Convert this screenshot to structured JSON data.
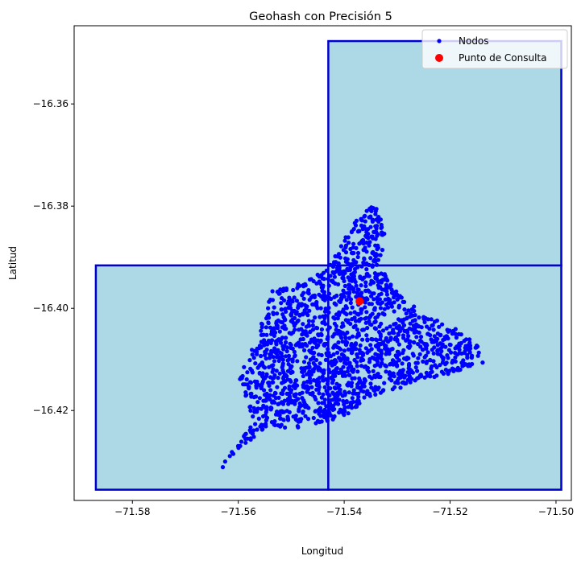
{
  "chart_data": {
    "type": "scatter",
    "title": "Geohash con Precisión 5",
    "xlabel": "Longitud",
    "ylabel": "Latitud",
    "xlim": [
      -71.591,
      -71.4971
    ],
    "ylim": [
      -16.4376,
      -16.3447
    ],
    "xticks": [
      -71.58,
      -71.56,
      -71.54,
      -71.52,
      -71.5
    ],
    "xtick_labels": [
      "−71.58",
      "−71.56",
      "−71.54",
      "−71.52",
      "−71.50"
    ],
    "yticks": [
      -16.36,
      -16.38,
      -16.4,
      -16.42
    ],
    "ytick_labels": [
      "−16.36",
      "−16.38",
      "−16.40",
      "−16.42"
    ],
    "grid": false,
    "legend": {
      "position": "top-right",
      "entries": [
        {
          "label": "Nodos",
          "color": "#0000ff",
          "marker": "small-circle"
        },
        {
          "label": "Punto de Consulta",
          "color": "#ff0000",
          "marker": "large-circle"
        }
      ]
    },
    "geohash_cells": [
      {
        "lon_min": -71.5869,
        "lon_max": -71.543,
        "lat_min": -16.4355,
        "lat_max": -16.3916
      },
      {
        "lon_min": -71.543,
        "lon_max": -71.499,
        "lat_min": -16.4355,
        "lat_max": -16.3916
      },
      {
        "lon_min": -71.543,
        "lon_max": -71.499,
        "lat_min": -16.3916,
        "lat_max": -16.3477
      }
    ],
    "cell_fill": "#add8e6",
    "cell_edge": "#0000cd",
    "series": [
      {
        "name": "Nodos",
        "color": "#0000ff",
        "region_outline": [
          [
            -71.5638,
            -16.432
          ],
          [
            -71.5545,
            -16.423
          ],
          [
            -71.5495,
            -16.4235
          ],
          [
            -71.544,
            -16.4225
          ],
          [
            -71.539,
            -16.4205
          ],
          [
            -71.533,
            -16.417
          ],
          [
            -71.525,
            -16.414
          ],
          [
            -71.518,
            -16.4125
          ],
          [
            -71.5135,
            -16.4105
          ],
          [
            -71.515,
            -16.407
          ],
          [
            -71.519,
            -16.404
          ],
          [
            -71.525,
            -16.401
          ],
          [
            -71.53,
            -16.397
          ],
          [
            -71.533,
            -16.391
          ],
          [
            -71.532,
            -16.3855
          ],
          [
            -71.534,
            -16.379
          ],
          [
            -71.538,
            -16.383
          ],
          [
            -71.543,
            -16.392
          ],
          [
            -71.548,
            -16.395
          ],
          [
            -71.5535,
            -16.3965
          ],
          [
            -71.556,
            -16.404
          ],
          [
            -71.56,
            -16.4135
          ],
          [
            -71.557,
            -16.422
          ],
          [
            -71.562,
            -16.429
          ]
        ],
        "count_estimate": 1800
      },
      {
        "name": "Punto de Consulta",
        "color": "#ff0000",
        "points": [
          {
            "x": -71.5371,
            "y": -16.3986
          }
        ]
      }
    ]
  }
}
